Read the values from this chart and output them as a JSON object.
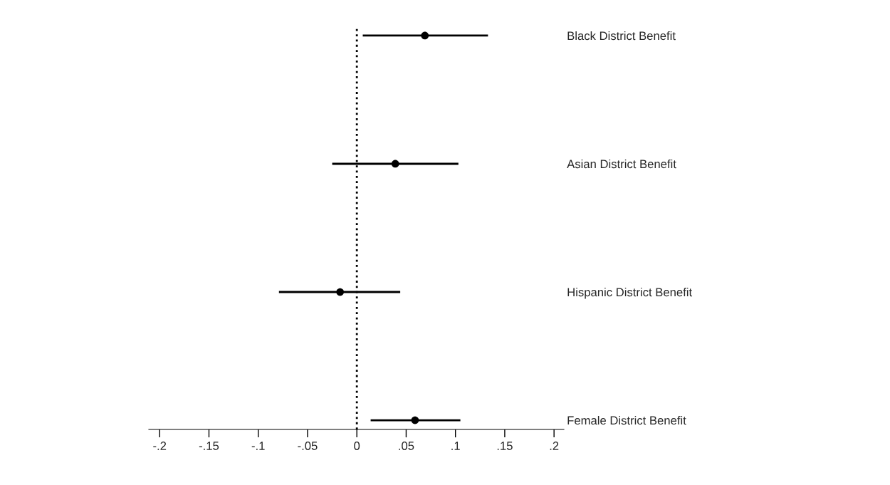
{
  "chart_data": {
    "type": "scatter",
    "orientation": "horizontal",
    "categories": [
      "Black District Benefit",
      "Asian District Benefit",
      "Hispanic District Benefit",
      "Female District Benefit"
    ],
    "values": [
      0.069,
      0.039,
      -0.017,
      0.059
    ],
    "errors": [
      [
        0.006,
        0.133
      ],
      [
        -0.025,
        0.103
      ],
      [
        -0.079,
        0.044
      ],
      [
        0.014,
        0.105
      ]
    ],
    "color": "#000000",
    "marker": "circle",
    "xlim": [
      -0.211,
      0.21
    ],
    "xticks": [
      {
        "value": -0.2,
        "label": "-.2"
      },
      {
        "value": -0.15,
        "label": "-.15"
      },
      {
        "value": -0.1,
        "label": "-.1"
      },
      {
        "value": -0.05,
        "label": "-.05"
      },
      0,
      {
        "value": 0.05,
        "label": ".05"
      },
      {
        "value": 0.1,
        "label": ".1"
      },
      {
        "value": 0.15,
        "label": ".15"
      },
      {
        "value": 0.2,
        "label": ".2"
      }
    ],
    "ref_lines": [
      {
        "axis": "x",
        "value": 0,
        "line_style": "dotted",
        "color": "#000000"
      }
    ],
    "grid": false
  }
}
